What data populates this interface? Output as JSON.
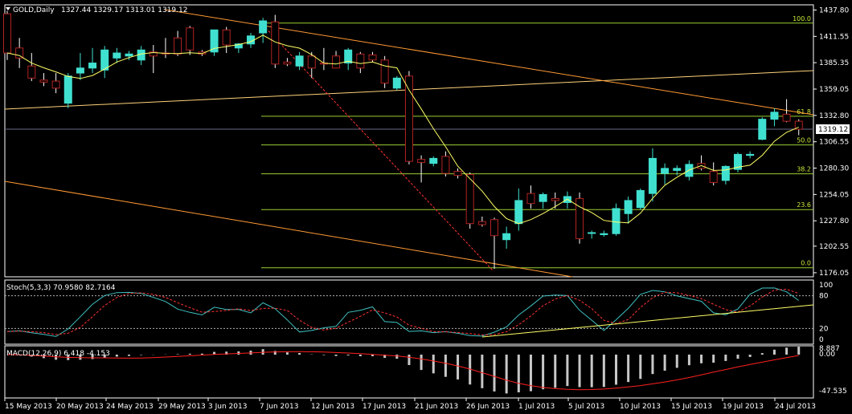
{
  "symbol_header": "GOLD,Daily",
  "ohlc_header": "1327.44 1329.17 1313.01 1319.12",
  "stoch_header": "Stoch(5,3,3) 70.9580 82.7164",
  "macd_header": "MACD(12,26,9) 6.418 -4.153",
  "current_price_label": "1319.12",
  "colors": {
    "bull": "#40e0d0",
    "bear": "#b22222",
    "ma": "#ffff66",
    "trend": "#ff9933",
    "fib": "#9acd32",
    "stoch_main": "#40c0c0",
    "stoch_signal": "#ff3333",
    "macd_hist": "#c8c8c8",
    "macd_signal": "#ff2020",
    "grid": "#808080"
  },
  "chart_data": {
    "type": "candlestick",
    "price_axis_ticks": [
      "1437.80",
      "1411.55",
      "1385.35",
      "1359.05",
      "1332.80",
      "1306.55",
      "1280.30",
      "1254.05",
      "1227.80",
      "1202.55",
      "1176.05"
    ],
    "fib_levels": [
      {
        "label": "100.0",
        "price": 1424.8
      },
      {
        "label": "61.8",
        "price": 1332.0
      },
      {
        "label": "50.0",
        "price": 1303.4
      },
      {
        "label": "38.2",
        "price": 1274.6
      },
      {
        "label": "23.6",
        "price": 1239.0
      },
      {
        "label": "0.0",
        "price": 1181.0
      }
    ],
    "stoch_axis_ticks": [
      "100",
      "80",
      "20",
      "0"
    ],
    "macd_axis_ticks": [
      "8.887",
      "0.00",
      "-47.535"
    ],
    "date_labels": [
      "15 May 2013",
      "20 May 2013",
      "24 May 2013",
      "29 May 2013",
      "3 Jun 2013",
      "7 Jun 2013",
      "12 Jun 2013",
      "17 Jun 2013",
      "21 Jun 2013",
      "26 Jun 2013",
      "1 Jul 2013",
      "5 Jul 2013",
      "10 Jul 2013",
      "15 Jul 2013",
      "19 Jul 2013",
      "24 Jul 2013"
    ],
    "candles": [
      [
        1434,
        1437,
        1388,
        1395
      ],
      [
        1400,
        1410,
        1380,
        1390
      ],
      [
        1382,
        1395,
        1367,
        1370
      ],
      [
        1368,
        1375,
        1362,
        1366
      ],
      [
        1367,
        1375,
        1355,
        1360
      ],
      [
        1345,
        1375,
        1340,
        1372
      ],
      [
        1375,
        1395,
        1368,
        1380
      ],
      [
        1380,
        1400,
        1375,
        1385
      ],
      [
        1378,
        1402,
        1370,
        1398
      ],
      [
        1390,
        1400,
        1385,
        1395
      ],
      [
        1392,
        1397,
        1388,
        1394
      ],
      [
        1388,
        1402,
        1383,
        1398
      ],
      [
        1396,
        1403,
        1375,
        1392
      ],
      [
        1395,
        1410,
        1390,
        1394
      ],
      [
        1410,
        1417,
        1392,
        1394
      ],
      [
        1420,
        1422,
        1393,
        1398
      ],
      [
        1396,
        1398,
        1392,
        1394
      ],
      [
        1396,
        1418,
        1392,
        1418
      ],
      [
        1418,
        1421,
        1395,
        1403
      ],
      [
        1400,
        1405,
        1395,
        1404
      ],
      [
        1404,
        1415,
        1400,
        1412
      ],
      [
        1415,
        1430,
        1405,
        1427
      ],
      [
        1426,
        1433,
        1380,
        1384
      ],
      [
        1386,
        1390,
        1382,
        1384
      ],
      [
        1382,
        1396,
        1378,
        1392
      ],
      [
        1392,
        1396,
        1370,
        1380
      ],
      [
        1385,
        1400,
        1378,
        1384
      ],
      [
        1392,
        1397,
        1380,
        1380
      ],
      [
        1385,
        1400,
        1378,
        1398
      ],
      [
        1394,
        1396,
        1375,
        1380
      ],
      [
        1393,
        1396,
        1386,
        1388
      ],
      [
        1388,
        1392,
        1360,
        1365
      ],
      [
        1360,
        1372,
        1358,
        1370
      ],
      [
        1372,
        1377,
        1284,
        1287
      ],
      [
        1289,
        1293,
        1266,
        1286
      ],
      [
        1285,
        1292,
        1282,
        1290
      ],
      [
        1292,
        1297,
        1272,
        1275
      ],
      [
        1277,
        1280,
        1270,
        1273
      ],
      [
        1274,
        1276,
        1220,
        1225
      ],
      [
        1227,
        1232,
        1222,
        1224
      ],
      [
        1229,
        1231,
        1180,
        1213
      ],
      [
        1209,
        1222,
        1200,
        1215
      ],
      [
        1225,
        1260,
        1218,
        1248
      ],
      [
        1255,
        1263,
        1240,
        1245
      ],
      [
        1247,
        1256,
        1240,
        1254
      ],
      [
        1250,
        1256,
        1240,
        1248
      ],
      [
        1246,
        1257,
        1240,
        1252
      ],
      [
        1250,
        1256,
        1205,
        1210
      ],
      [
        1216,
        1218,
        1210,
        1216
      ],
      [
        1214,
        1218,
        1212,
        1215
      ],
      [
        1215,
        1245,
        1213,
        1240
      ],
      [
        1235,
        1252,
        1225,
        1248
      ],
      [
        1241,
        1260,
        1239,
        1258
      ],
      [
        1255,
        1300,
        1247,
        1290
      ],
      [
        1275,
        1285,
        1264,
        1280
      ],
      [
        1278,
        1283,
        1273,
        1280
      ],
      [
        1272,
        1288,
        1268,
        1284
      ],
      [
        1285,
        1293,
        1278,
        1280
      ],
      [
        1277,
        1286,
        1263,
        1266
      ],
      [
        1268,
        1283,
        1264,
        1282
      ],
      [
        1279,
        1296,
        1276,
        1294
      ],
      [
        1293,
        1297,
        1290,
        1294
      ],
      [
        1309,
        1331,
        1308,
        1329
      ],
      [
        1329,
        1340,
        1322,
        1336
      ],
      [
        1334,
        1349,
        1326,
        1327
      ],
      [
        1327,
        1329,
        1313,
        1319
      ]
    ]
  }
}
